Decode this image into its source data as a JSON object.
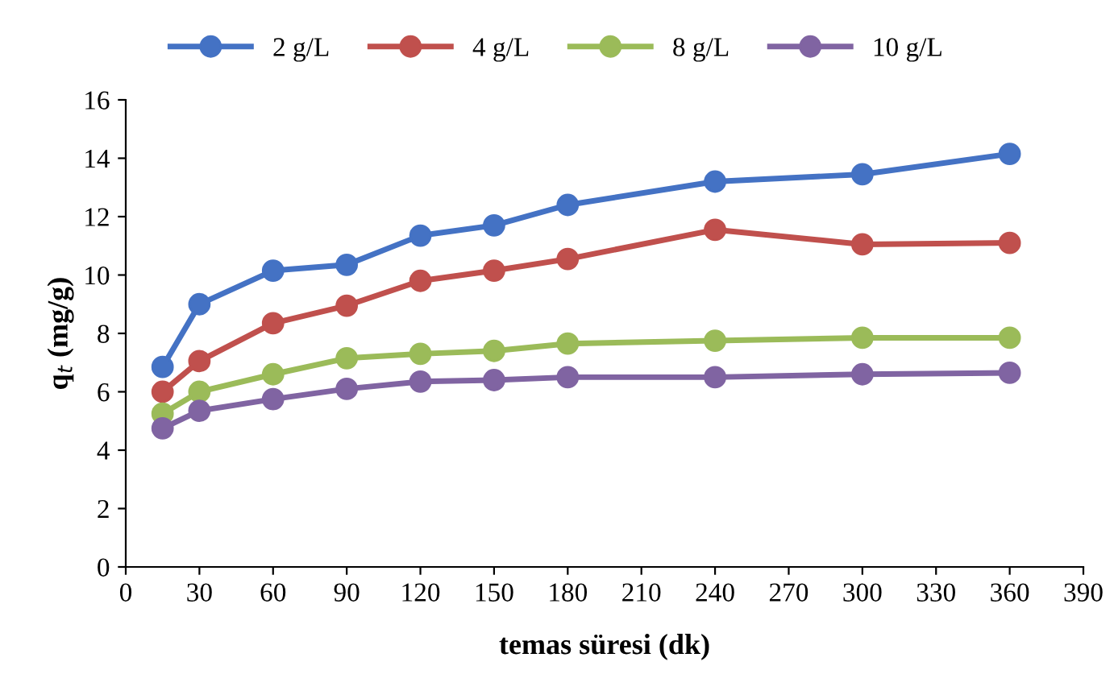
{
  "chart_data": {
    "type": "line",
    "xlabel": "temas süresi (dk)",
    "ylabel": "q$_{t}$ (mg/g)",
    "x": [
      15,
      30,
      60,
      90,
      120,
      150,
      180,
      240,
      300,
      360
    ],
    "series": [
      {
        "name": "2 g/L",
        "color": "#4472c4",
        "values": [
          6.85,
          9.0,
          10.15,
          10.35,
          11.35,
          11.7,
          12.4,
          13.2,
          13.45,
          14.15
        ]
      },
      {
        "name": "4 g/L",
        "color": "#c0504d",
        "values": [
          6.0,
          7.05,
          8.35,
          8.95,
          9.8,
          10.15,
          10.55,
          11.55,
          11.05,
          11.1
        ]
      },
      {
        "name": "8 g/L",
        "color": "#9bbb59",
        "values": [
          5.25,
          6.0,
          6.6,
          7.15,
          7.3,
          7.4,
          7.65,
          7.75,
          7.85,
          7.85
        ]
      },
      {
        "name": "10 g/L",
        "color": "#8064a2",
        "values": [
          4.75,
          5.35,
          5.75,
          6.1,
          6.35,
          6.4,
          6.5,
          6.5,
          6.6,
          6.65
        ]
      }
    ],
    "xlim": [
      0,
      390
    ],
    "xticks": [
      0,
      30,
      60,
      90,
      120,
      150,
      180,
      210,
      240,
      270,
      300,
      330,
      360,
      390
    ],
    "ylim": [
      0,
      16
    ],
    "yticks": [
      0,
      2,
      4,
      6,
      8,
      10,
      12,
      14,
      16
    ],
    "marker": "circle",
    "line_style": "solid",
    "grid": false,
    "legend": "top"
  }
}
